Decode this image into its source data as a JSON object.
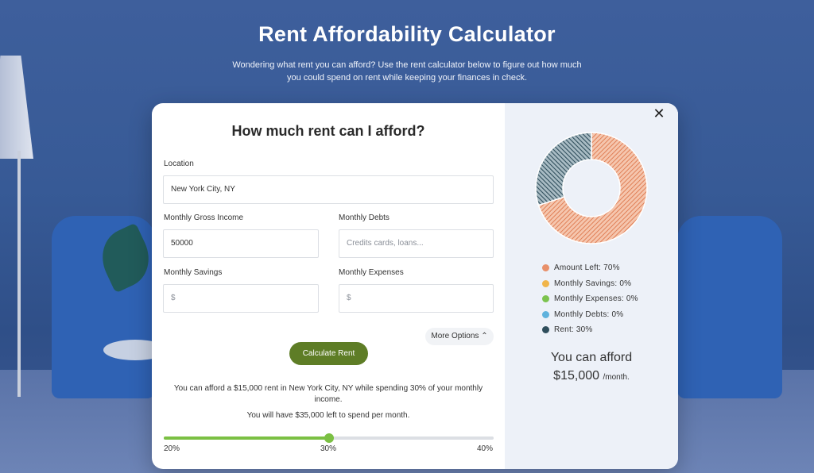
{
  "header": {
    "title": "Rent Affordability Calculator",
    "subtitle": "Wondering what rent you can afford? Use the rent calculator below to figure out how much you could spend on rent while keeping your finances in check."
  },
  "form": {
    "title": "How much rent can I afford?",
    "location": {
      "label": "Location",
      "value": "New York City, NY"
    },
    "income": {
      "label": "Monthly Gross Income",
      "value": "50000"
    },
    "debts": {
      "label": "Monthly Debts",
      "placeholder": "Credits cards, loans..."
    },
    "savings": {
      "label": "Monthly Savings",
      "placeholder": "$"
    },
    "expenses": {
      "label": "Monthly Expenses",
      "placeholder": "$"
    },
    "more_options": "More Options",
    "calculate": "Calculate Rent"
  },
  "results": {
    "line1": "You can afford a $15,000 rent in New York City, NY while spending 30% of your monthly income.",
    "line2": "You will have $35,000 left to spend per month."
  },
  "slider": {
    "min_label": "20%",
    "mid_label": "30%",
    "max_label": "40%",
    "min": 20,
    "max": 40,
    "value": 30,
    "fill_color": "#7bc043"
  },
  "chart_data": {
    "type": "pie",
    "donut": true,
    "slices": [
      {
        "label": "Amount Left: 70%",
        "value": 70,
        "color": "#e8906a"
      },
      {
        "label": "Monthly Savings: 0%",
        "value": 0,
        "color": "#f0b54a"
      },
      {
        "label": "Monthly Expenses: 0%",
        "value": 0,
        "color": "#7cc34e"
      },
      {
        "label": "Monthly Debts: 0%",
        "value": 0,
        "color": "#5fb2dd"
      },
      {
        "label": "Rent: 30%",
        "value": 30,
        "color": "#2f4e5c"
      }
    ]
  },
  "summary": {
    "title": "You can afford",
    "amount": "$15,000",
    "per": "/month."
  },
  "close_icon": "close-icon"
}
